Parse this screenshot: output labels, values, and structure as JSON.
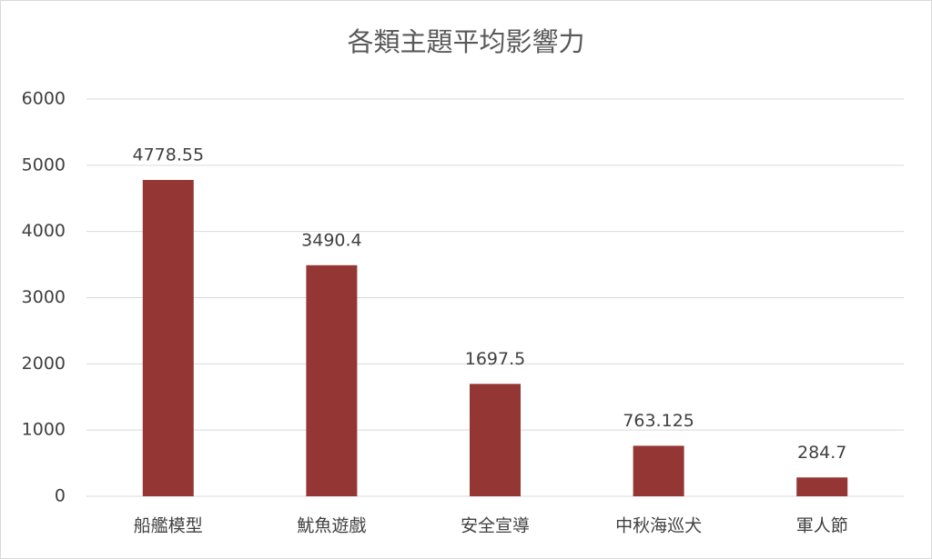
{
  "chart_data": {
    "type": "bar",
    "title": "各類主題平均影響力",
    "categories": [
      "船艦模型",
      "魷魚遊戲",
      "安全宣導",
      "中秋海巡犬",
      "軍人節"
    ],
    "values": [
      4778.55,
      3490.4,
      1697.5,
      763.125,
      284.7
    ],
    "color": "#943634",
    "ylim": [
      0,
      6000
    ],
    "yticks": [
      0,
      1000,
      2000,
      3000,
      4000,
      5000,
      6000
    ],
    "grid": true,
    "data_labels": true
  }
}
